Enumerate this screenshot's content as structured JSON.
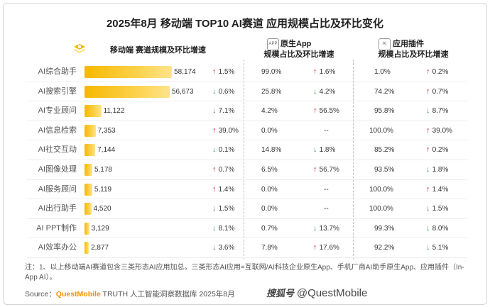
{
  "title": "2025年8月 移动端 TOP10 AI赛道 应用规模占比及环比变化",
  "headers": {
    "col1": "移动端 赛道规模及环比增速",
    "col2_line1": "原生App",
    "col2_line2": "规模占比及环比增速",
    "col3_line1": "应用插件",
    "col3_line2": "规模占比及环比增速",
    "col2_chip": "APP",
    "col3_chip": "AI"
  },
  "colors": {
    "bar": "#f6b800",
    "up": "#e02020",
    "down": "#2e9e40"
  },
  "chart_data": {
    "type": "bar",
    "title": "2025年8月 移动端 TOP10 AI赛道 应用规模占比及环比变化",
    "categories": [
      "AI综合助手",
      "AI搜索引擎",
      "AI专业顾问",
      "AI信息检索",
      "AI社交互动",
      "AI图像处理",
      "AI服务顾问",
      "AI出行助手",
      "AI PPT制作",
      "AI效率办公"
    ],
    "values": [
      58174,
      56673,
      11122,
      7353,
      7144,
      5178,
      5119,
      4520,
      3129,
      2877
    ],
    "value_labels": [
      "58,174",
      "56,673",
      "11,122",
      "7,353",
      "7,144",
      "5,178",
      "5,119",
      "4,520",
      "3,129",
      "2,877"
    ],
    "xlim": [
      0,
      60000
    ],
    "rows": [
      {
        "growth": "1.5%",
        "g_dir": "up",
        "app_share": "99.0%",
        "app_growth": "1.6%",
        "app_dir": "up",
        "plugin_share": "1.0%",
        "plugin_growth": "0.2%",
        "plugin_dir": "up"
      },
      {
        "growth": "0.6%",
        "g_dir": "down",
        "app_share": "25.8%",
        "app_growth": "4.2%",
        "app_dir": "down",
        "plugin_share": "74.2%",
        "plugin_growth": "0.7%",
        "plugin_dir": "up"
      },
      {
        "growth": "7.1%",
        "g_dir": "down",
        "app_share": "4.2%",
        "app_growth": "56.5%",
        "app_dir": "up",
        "plugin_share": "95.8%",
        "plugin_growth": "8.7%",
        "plugin_dir": "down"
      },
      {
        "growth": "39.0%",
        "g_dir": "up",
        "app_share": "0.0%",
        "app_growth": "--",
        "app_dir": "none",
        "plugin_share": "100.0%",
        "plugin_growth": "39.0%",
        "plugin_dir": "up"
      },
      {
        "growth": "0.1%",
        "g_dir": "down",
        "app_share": "14.8%",
        "app_growth": "1.8%",
        "app_dir": "down",
        "plugin_share": "85.2%",
        "plugin_growth": "0.2%",
        "plugin_dir": "up"
      },
      {
        "growth": "0.7%",
        "g_dir": "up",
        "app_share": "6.5%",
        "app_growth": "56.7%",
        "app_dir": "up",
        "plugin_share": "93.5%",
        "plugin_growth": "1.8%",
        "plugin_dir": "down"
      },
      {
        "growth": "1.4%",
        "g_dir": "up",
        "app_share": "0.0%",
        "app_growth": "--",
        "app_dir": "none",
        "plugin_share": "100.0%",
        "plugin_growth": "1.4%",
        "plugin_dir": "up"
      },
      {
        "growth": "1.5%",
        "g_dir": "down",
        "app_share": "0.0%",
        "app_growth": "--",
        "app_dir": "none",
        "plugin_share": "100.0%",
        "plugin_growth": "1.5%",
        "plugin_dir": "down"
      },
      {
        "growth": "8.1%",
        "g_dir": "down",
        "app_share": "0.7%",
        "app_growth": "13.7%",
        "app_dir": "down",
        "plugin_share": "99.3%",
        "plugin_growth": "8.0%",
        "plugin_dir": "down"
      },
      {
        "growth": "3.6%",
        "g_dir": "down",
        "app_share": "7.8%",
        "app_growth": "17.6%",
        "app_dir": "up",
        "plugin_share": "92.2%",
        "plugin_growth": "5.1%",
        "plugin_dir": "down"
      }
    ]
  },
  "note": "注：1、以上移动端AI赛道包含三类形态AI应用加总。三类形态AI应用=互联网/AI科技企业原生App、手机厂商AI助手原生App、应用插件（In-App AI）。",
  "source": {
    "label": "Source：",
    "brand": "QuestMobile",
    "text": "TRUTH 人工智能洞察数据库 2025年8月"
  },
  "watermark": "@QuestMobile",
  "watermark_logo": "搜狐号"
}
